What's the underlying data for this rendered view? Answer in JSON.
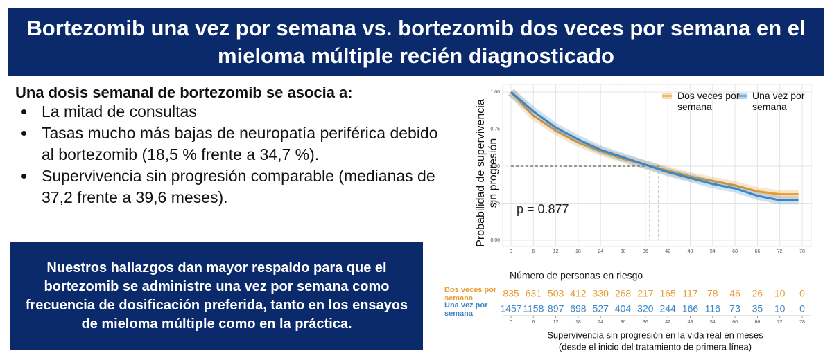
{
  "header": {
    "title": "Bortezomib una vez por semana vs. bortezomib dos veces por semana en el mieloma múltiple recién diagnosticado"
  },
  "summary": {
    "heading": "Una dosis semanal de bortezomib se asocia a:",
    "bullets": [
      "La mitad de consultas",
      "Tasas mucho más bajas de neuropatía periférica debido al bortezomib (18,5 % frente a 34,7 %).",
      "Supervivencia sin progresión comparable (medianas de 37,2 frente a 39,6 meses)."
    ]
  },
  "conclusion": "Nuestros hallazgos dan mayor respaldo para que el bortezomib se administre una vez por semana como frecuencia de dosificación preferida, tanto en los ensayos de mieloma múltiple como en la práctica.",
  "chart_data": {
    "type": "line",
    "y_label": "Probabilidad de supervivencia sin progresión",
    "x_label": "Supervivencia sin progresión en la vida real en meses",
    "x_label_note": "(desde el inicio del tratamiento de primera línea)",
    "annotation": "p = 0.877",
    "x": [
      0,
      6,
      12,
      18,
      24,
      30,
      36,
      42,
      48,
      54,
      60,
      66,
      72,
      77
    ],
    "series": [
      {
        "name": "Dos veces por semana",
        "color": "#e89a2c",
        "values": [
          1.0,
          0.84,
          0.74,
          0.66,
          0.6,
          0.55,
          0.51,
          0.47,
          0.43,
          0.4,
          0.37,
          0.33,
          0.31,
          0.31
        ]
      },
      {
        "name": "Una vez por semana",
        "color": "#3d86c6",
        "values": [
          1.0,
          0.87,
          0.76,
          0.68,
          0.61,
          0.56,
          0.51,
          0.46,
          0.42,
          0.38,
          0.35,
          0.3,
          0.27,
          0.27
        ]
      }
    ],
    "median_lines": {
      "x": [
        37.2,
        39.6
      ],
      "y": 0.5
    },
    "xlim": [
      0,
      78
    ],
    "xticks": [
      0,
      6,
      12,
      18,
      24,
      30,
      36,
      42,
      48,
      54,
      60,
      66,
      72,
      78
    ],
    "ylim": [
      0,
      1
    ],
    "yticks": [
      {
        "value": 0,
        "label": "0.00"
      },
      {
        "value": 0.25,
        "label": "0.25"
      },
      {
        "value": 0.5,
        "label": "0.50"
      },
      {
        "value": 0.75,
        "label": "0.75"
      },
      {
        "value": 1,
        "label": "1.00"
      }
    ],
    "grid": true,
    "legend": "top-right",
    "risk_table": {
      "title": "Número de personas en riesgo",
      "x": [
        0,
        6,
        12,
        18,
        24,
        30,
        36,
        42,
        48,
        54,
        60,
        66,
        72,
        78
      ],
      "rows": [
        {
          "name": "Dos veces por semana",
          "color": "#e89a2c",
          "values": [
            835,
            631,
            503,
            412,
            330,
            268,
            217,
            165,
            117,
            78,
            46,
            26,
            10,
            0
          ]
        },
        {
          "name": "Una vez por semana",
          "color": "#3d86c6",
          "values": [
            1457,
            1158,
            897,
            698,
            527,
            404,
            320,
            244,
            166,
            116,
            73,
            35,
            10,
            0
          ]
        }
      ]
    }
  }
}
